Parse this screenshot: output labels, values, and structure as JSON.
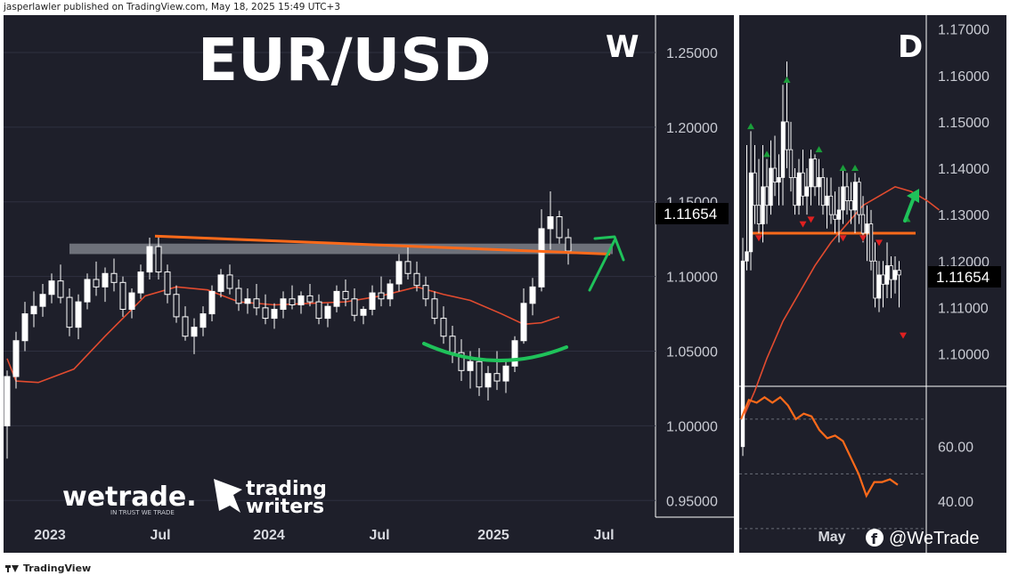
{
  "header": {
    "credit": "jasperlawler published on TradingView.com, May 18, 2025 15:49 UTC+3"
  },
  "footer": {
    "brand": "TradingView"
  },
  "colors": {
    "panel": "#1e1f2a",
    "candle_up": "#ffffff",
    "candle_down": "#1e1f2a",
    "moving_average": "#e24b2f",
    "trendline": "#ff6a1a",
    "resistance_zone": "#8a8d96",
    "curve": "#1fc25a",
    "arrow": "#1fc25a",
    "up_marker": "#1a9e3a",
    "down_marker": "#e02020"
  },
  "chart_data": [
    {
      "type": "candlestick",
      "symbol_title": "EUR/USD",
      "timeframe_label": "W",
      "y_ticks": [
        "1.25000",
        "1.20000",
        "1.15000",
        "1.10000",
        "1.05000",
        "1.00000",
        "0.95000"
      ],
      "ylim": [
        0.915,
        1.275
      ],
      "x_ticks": [
        "2023",
        "Jul",
        "2024",
        "Jul",
        "2025",
        "Jul"
      ],
      "last_price": "1.11654",
      "moving_average": [
        [
          0,
          1.045
        ],
        [
          4,
          1.03
        ],
        [
          14,
          1.029
        ],
        [
          30,
          1.038
        ],
        [
          44,
          1.06
        ],
        [
          54,
          1.075
        ],
        [
          62,
          1.087
        ],
        [
          76,
          1.093
        ],
        [
          90,
          1.091
        ],
        [
          104,
          1.083
        ],
        [
          120,
          1.081
        ],
        [
          136,
          1.082
        ],
        [
          152,
          1.083
        ],
        [
          168,
          1.087
        ],
        [
          184,
          1.093
        ],
        [
          196,
          1.088
        ],
        [
          208,
          1.084
        ],
        [
          222,
          1.075
        ],
        [
          232,
          1.068
        ],
        [
          240,
          1.069
        ],
        [
          248,
          1.073
        ]
      ],
      "trendline": {
        "from": [
          64,
          1.127
        ],
        "to": [
          262,
          1.115
        ]
      },
      "resistance_zone": {
        "from_x": 28,
        "to_x": 272,
        "low": 1.115,
        "high": 1.122
      },
      "candles": [
        [
          1.0,
          1.037,
          0.978,
          1.033
        ],
        [
          1.033,
          1.063,
          1.025,
          1.057
        ],
        [
          1.057,
          1.083,
          1.05,
          1.075
        ],
        [
          1.075,
          1.09,
          1.066,
          1.08
        ],
        [
          1.08,
          1.095,
          1.073,
          1.088
        ],
        [
          1.088,
          1.102,
          1.082,
          1.097
        ],
        [
          1.097,
          1.108,
          1.082,
          1.086
        ],
        [
          1.086,
          1.092,
          1.06,
          1.066
        ],
        [
          1.066,
          1.088,
          1.058,
          1.083
        ],
        [
          1.083,
          1.102,
          1.078,
          1.098
        ],
        [
          1.098,
          1.11,
          1.087,
          1.093
        ],
        [
          1.093,
          1.106,
          1.083,
          1.102
        ],
        [
          1.102,
          1.112,
          1.09,
          1.096
        ],
        [
          1.096,
          1.1,
          1.073,
          1.078
        ],
        [
          1.078,
          1.092,
          1.072,
          1.089
        ],
        [
          1.089,
          1.108,
          1.085,
          1.103
        ],
        [
          1.103,
          1.126,
          1.098,
          1.12
        ],
        [
          1.12,
          1.127,
          1.098,
          1.103
        ],
        [
          1.103,
          1.108,
          1.082,
          1.088
        ],
        [
          1.088,
          1.094,
          1.069,
          1.073
        ],
        [
          1.073,
          1.08,
          1.057,
          1.06
        ],
        [
          1.06,
          1.072,
          1.048,
          1.066
        ],
        [
          1.066,
          1.08,
          1.06,
          1.075
        ],
        [
          1.075,
          1.094,
          1.07,
          1.09
        ],
        [
          1.09,
          1.105,
          1.086,
          1.101
        ],
        [
          1.101,
          1.108,
          1.088,
          1.092
        ],
        [
          1.092,
          1.098,
          1.077,
          1.082
        ],
        [
          1.082,
          1.092,
          1.075,
          1.085
        ],
        [
          1.085,
          1.095,
          1.074,
          1.079
        ],
        [
          1.079,
          1.088,
          1.068,
          1.072
        ],
        [
          1.072,
          1.082,
          1.065,
          1.078
        ],
        [
          1.078,
          1.09,
          1.072,
          1.085
        ],
        [
          1.085,
          1.094,
          1.078,
          1.081
        ],
        [
          1.081,
          1.09,
          1.075,
          1.087
        ],
        [
          1.087,
          1.095,
          1.08,
          1.083
        ],
        [
          1.083,
          1.088,
          1.068,
          1.072
        ],
        [
          1.072,
          1.082,
          1.066,
          1.08
        ],
        [
          1.08,
          1.094,
          1.076,
          1.09
        ],
        [
          1.09,
          1.098,
          1.08,
          1.085
        ],
        [
          1.085,
          1.092,
          1.07,
          1.074
        ],
        [
          1.074,
          1.08,
          1.068,
          1.078
        ],
        [
          1.078,
          1.094,
          1.074,
          1.089
        ],
        [
          1.089,
          1.1,
          1.08,
          1.085
        ],
        [
          1.085,
          1.098,
          1.08,
          1.095
        ],
        [
          1.095,
          1.115,
          1.09,
          1.11
        ],
        [
          1.11,
          1.12,
          1.098,
          1.102
        ],
        [
          1.102,
          1.11,
          1.09,
          1.094
        ],
        [
          1.094,
          1.1,
          1.08,
          1.085
        ],
        [
          1.085,
          1.09,
          1.068,
          1.072
        ],
        [
          1.072,
          1.08,
          1.055,
          1.06
        ],
        [
          1.06,
          1.067,
          1.042,
          1.049
        ],
        [
          1.049,
          1.058,
          1.03,
          1.037
        ],
        [
          1.037,
          1.05,
          1.025,
          1.043
        ],
        [
          1.043,
          1.052,
          1.02,
          1.026
        ],
        [
          1.026,
          1.04,
          1.017,
          1.035
        ],
        [
          1.035,
          1.05,
          1.024,
          1.03
        ],
        [
          1.03,
          1.044,
          1.022,
          1.04
        ],
        [
          1.04,
          1.06,
          1.036,
          1.057
        ],
        [
          1.057,
          1.092,
          1.055,
          1.082
        ],
        [
          1.082,
          1.099,
          1.074,
          1.093
        ],
        [
          1.093,
          1.145,
          1.09,
          1.132
        ],
        [
          1.132,
          1.157,
          1.118,
          1.14
        ],
        [
          1.14,
          1.144,
          1.122,
          1.126
        ],
        [
          1.126,
          1.132,
          1.108,
          1.117
        ]
      ]
    },
    {
      "type": "candlestick",
      "timeframe_label": "D",
      "y_ticks": [
        "1.17000",
        "1.16000",
        "1.15000",
        "1.14000",
        "1.13000",
        "1.12000",
        "1.11000",
        "1.10000"
      ],
      "ylim": [
        1.093,
        1.173
      ],
      "x_ticks": [
        "May"
      ],
      "last_price": "1.11654",
      "horizontal_level": 1.126,
      "moving_average": [
        [
          0,
          1.086
        ],
        [
          3,
          1.092
        ],
        [
          6,
          1.099
        ],
        [
          10,
          1.107
        ],
        [
          14,
          1.113
        ],
        [
          18,
          1.119
        ],
        [
          22,
          1.124
        ],
        [
          26,
          1.128
        ],
        [
          30,
          1.132
        ],
        [
          34,
          1.134
        ],
        [
          38,
          1.136
        ],
        [
          42,
          1.135
        ],
        [
          46,
          1.133
        ],
        [
          49,
          1.131
        ]
      ],
      "up_markers": [
        [
          2,
          1.149
        ],
        [
          6,
          1.143
        ],
        [
          11,
          1.159
        ],
        [
          19,
          1.144
        ],
        [
          25,
          1.14
        ],
        [
          28,
          1.14
        ],
        [
          41,
          1.129
        ]
      ],
      "down_markers": [
        [
          4,
          1.125
        ],
        [
          15,
          1.128
        ],
        [
          17,
          1.129
        ],
        [
          25,
          1.125
        ],
        [
          30,
          1.125
        ],
        [
          34,
          1.124
        ],
        [
          40,
          1.104
        ]
      ],
      "candles": [
        [
          1.08,
          1.125,
          1.078,
          1.12
        ],
        [
          1.12,
          1.145,
          1.118,
          1.122
        ],
        [
          1.122,
          1.148,
          1.118,
          1.139
        ],
        [
          1.139,
          1.145,
          1.128,
          1.132
        ],
        [
          1.132,
          1.142,
          1.126,
          1.128
        ],
        [
          1.128,
          1.145,
          1.124,
          1.136
        ],
        [
          1.136,
          1.142,
          1.128,
          1.132
        ],
        [
          1.132,
          1.146,
          1.13,
          1.14
        ],
        [
          1.14,
          1.147,
          1.134,
          1.137
        ],
        [
          1.137,
          1.143,
          1.132,
          1.138
        ],
        [
          1.138,
          1.158,
          1.132,
          1.15
        ],
        [
          1.15,
          1.163,
          1.14,
          1.144
        ],
        [
          1.144,
          1.15,
          1.135,
          1.138
        ],
        [
          1.138,
          1.14,
          1.13,
          1.132
        ],
        [
          1.132,
          1.142,
          1.13,
          1.139
        ],
        [
          1.139,
          1.144,
          1.132,
          1.134
        ],
        [
          1.134,
          1.14,
          1.13,
          1.136
        ],
        [
          1.136,
          1.144,
          1.132,
          1.142
        ],
        [
          1.142,
          1.143,
          1.134,
          1.136
        ],
        [
          1.136,
          1.142,
          1.132,
          1.138
        ],
        [
          1.138,
          1.14,
          1.13,
          1.132
        ],
        [
          1.132,
          1.138,
          1.127,
          1.134
        ],
        [
          1.134,
          1.138,
          1.128,
          1.13
        ],
        [
          1.13,
          1.135,
          1.126,
          1.129
        ],
        [
          1.129,
          1.136,
          1.124,
          1.131
        ],
        [
          1.131,
          1.14,
          1.128,
          1.136
        ],
        [
          1.136,
          1.139,
          1.13,
          1.133
        ],
        [
          1.133,
          1.137,
          1.128,
          1.131
        ],
        [
          1.131,
          1.139,
          1.126,
          1.137
        ],
        [
          1.137,
          1.138,
          1.128,
          1.13
        ],
        [
          1.13,
          1.134,
          1.124,
          1.126
        ],
        [
          1.126,
          1.132,
          1.12,
          1.128
        ],
        [
          1.128,
          1.131,
          1.118,
          1.12
        ],
        [
          1.12,
          1.124,
          1.11,
          1.112
        ],
        [
          1.112,
          1.12,
          1.109,
          1.117
        ],
        [
          1.117,
          1.12,
          1.11,
          1.115
        ],
        [
          1.115,
          1.124,
          1.112,
          1.119
        ],
        [
          1.119,
          1.121,
          1.112,
          1.116
        ],
        [
          1.116,
          1.121,
          1.113,
          1.118
        ],
        [
          1.118,
          1.12,
          1.11,
          1.117
        ]
      ],
      "oscillator": {
        "y_ticks": [
          "60.00",
          "40.00"
        ],
        "ylim": [
          28,
          82
        ],
        "values": [
          70,
          77,
          76,
          78,
          76,
          78,
          75,
          70,
          72,
          71,
          66,
          63,
          64,
          62,
          56,
          50,
          42,
          47,
          47,
          48,
          46
        ]
      }
    }
  ],
  "brands": {
    "wetrade_logo": "wetrade.",
    "wetrade_tagline": "IN TRUST WE TRADE",
    "tradingwriters_logo_line1": "trading",
    "tradingwriters_logo_line2": "writers",
    "social_handle": "@WeTrade",
    "social_icon": "facebook-icon"
  }
}
